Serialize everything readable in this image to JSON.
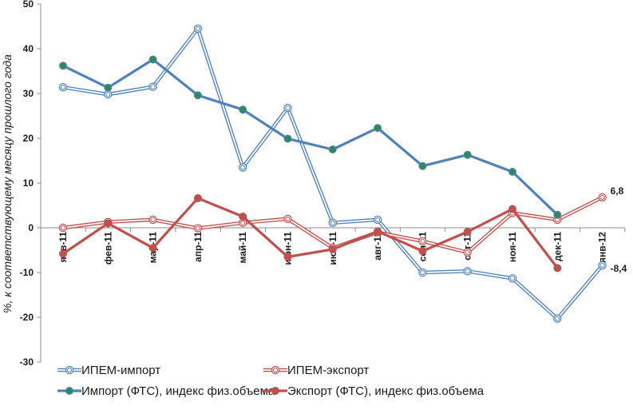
{
  "chart_data": {
    "type": "line",
    "title": "",
    "xlabel": "",
    "ylabel": "%, к соответствующему месяцу прошлого года",
    "ylim": [
      -30,
      50
    ],
    "yticks": [
      50,
      40,
      30,
      20,
      10,
      0,
      -10,
      -20,
      -30
    ],
    "grid": false,
    "legend_position": "bottom",
    "categories": [
      "янв-11",
      "фев-11",
      "мар-11",
      "апр-11",
      "май-11",
      "июн-11",
      "июл-11",
      "авг-11",
      "сен-11",
      "окт-11",
      "ноя-11",
      "дек-11",
      "янв-12"
    ],
    "series": [
      {
        "name": "ИПЕМ-импорт",
        "color": "#4f81bd",
        "style": "double-hollow",
        "values": [
          31.4,
          29.8,
          31.5,
          44.5,
          13.5,
          26.8,
          1.1,
          1.8,
          -10.0,
          -9.7,
          -11.3,
          -20.3,
          -8.4
        ]
      },
      {
        "name": "ИПЕМ-экспорт",
        "color": "#c0504d",
        "style": "double-hollow",
        "values": [
          0.0,
          1.3,
          1.8,
          -0.1,
          1.1,
          2.0,
          -4.5,
          -1.0,
          -3.0,
          -5.5,
          3.3,
          1.8,
          6.8
        ]
      },
      {
        "name": "Импорт (ФТС), индекс физ.объема",
        "color": "#4f81bd",
        "style": "solid-dot",
        "marker_fill": "#2e8b57",
        "values": [
          36.2,
          31.3,
          37.6,
          29.6,
          26.4,
          19.9,
          17.5,
          22.3,
          13.8,
          16.3,
          12.5,
          2.9,
          null
        ]
      },
      {
        "name": "Экспорт (ФТС), индекс физ.объема",
        "color": "#c0504d",
        "style": "solid-dot",
        "marker_fill": "#c0504d",
        "values": [
          -5.8,
          1.0,
          -4.5,
          6.6,
          2.5,
          -6.5,
          -4.8,
          -0.8,
          -5.2,
          -0.9,
          4.2,
          -9.0,
          null
        ]
      }
    ],
    "data_labels": [
      {
        "series": 1,
        "index": 12,
        "text": "6,8"
      },
      {
        "series": 0,
        "index": 12,
        "text": "-8,4"
      }
    ]
  }
}
